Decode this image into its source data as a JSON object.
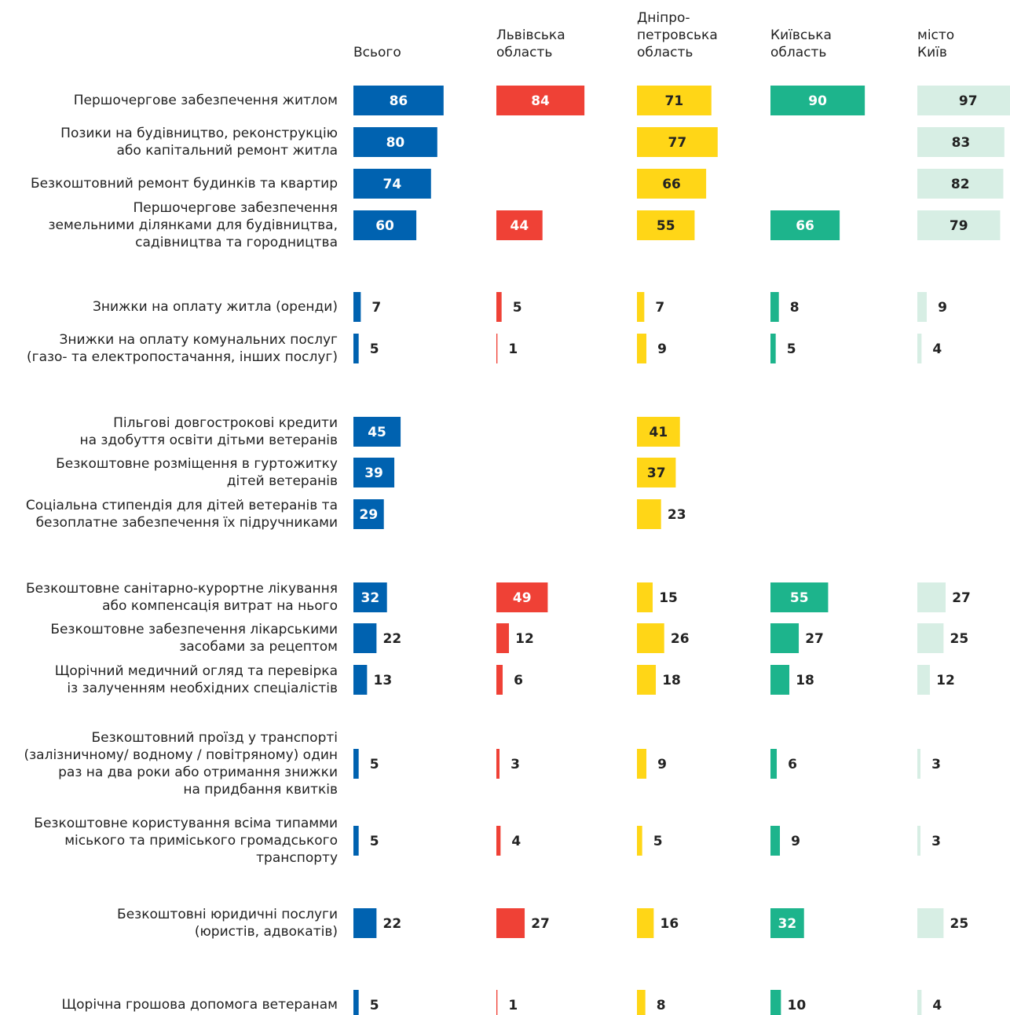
{
  "chart_data": {
    "type": "bar",
    "categories": [
      "Першочергове забезпечення житлом",
      "Позики на будівництво, реконструкцію\nабо капітальний ремонт житла",
      "Безкоштовний ремонт будинків та квартир",
      "Першочергове забезпечення\nземельними ділянками для будівництва,\nсадівництва та городництва",
      "Знижки на оплату житла (оренди)",
      "Знижки на оплату комунальних послуг\n(газо- та електропостачання, інших послуг)",
      "Пільгові довгострокові кредити\nна здобуття освіти дітьми ветеранів",
      "Безкоштовне розміщення в гуртожитку\nдітей ветеранів",
      "Соціальна стипендія для дітей ветеранів та\nбезоплатне забезпечення їх підручниками",
      "Безкоштовне санітарно-курортне лікування\nабо компенсація витрат на нього",
      "Безкоштовне забезпечення лікарськими\nзасобами за рецептом",
      "Щорічний медичний огляд та перевірка\nіз залученням необхідних спеціалістів",
      "Безкоштовний проїзд у транспорті\n(залізничному/ водному / повітряному) один\nраз на два роки або отримання знижки\nна придбання квитків",
      "Безкоштовне користування всіма типамми\nміського та приміського громадського\nтранспорту",
      "Безкоштовні юридичні послуги\n(юристів, адвокатів)",
      "Щорічна грошова допомога ветеранам"
    ],
    "series": [
      {
        "name": "Всього",
        "color": "#0062b0",
        "values": [
          86,
          80,
          74,
          60,
          7,
          5,
          45,
          39,
          29,
          32,
          22,
          13,
          5,
          5,
          22,
          5
        ]
      },
      {
        "name": "Львівська\nобласть",
        "color": "#ef4136",
        "values": [
          84,
          null,
          null,
          44,
          5,
          1,
          null,
          null,
          null,
          49,
          12,
          6,
          3,
          4,
          27,
          1
        ]
      },
      {
        "name": "Дніпро-\nпетровська\nобласть",
        "color": "#ffd617",
        "values": [
          71,
          77,
          66,
          55,
          7,
          9,
          41,
          37,
          23,
          15,
          26,
          18,
          9,
          5,
          16,
          8
        ]
      },
      {
        "name": "Київська\nобласть",
        "color": "#1db48c",
        "values": [
          90,
          null,
          null,
          66,
          8,
          5,
          null,
          null,
          null,
          55,
          27,
          18,
          6,
          9,
          32,
          10
        ]
      },
      {
        "name": "місто\nКиїв",
        "color": "#d7eee4",
        "values": [
          97,
          83,
          82,
          79,
          9,
          4,
          null,
          null,
          null,
          27,
          25,
          12,
          3,
          3,
          25,
          4
        ]
      }
    ]
  }
}
